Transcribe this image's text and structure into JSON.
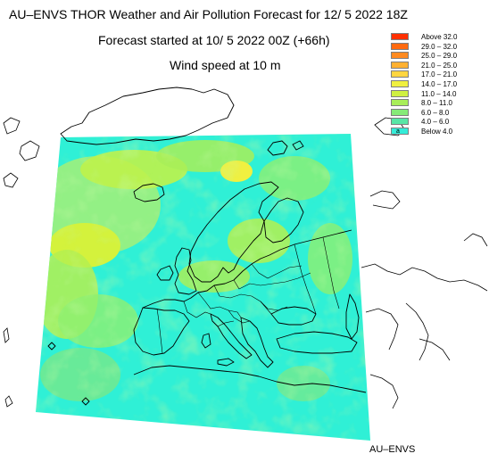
{
  "header": {
    "title": "AU–ENVS THOR Weather and Air Pollution Forecast for 12/ 5 2022  18Z",
    "subtitle": "Forecast started at 10/ 5 2022  00Z (+66h)",
    "variable": "Wind speed at 10 m"
  },
  "legend": {
    "items": [
      {
        "label": "Above   32.0",
        "color": "#ff3000"
      },
      {
        "label": "29.0  –  32.0",
        "color": "#ff6a10"
      },
      {
        "label": "25.0  –  29.0",
        "color": "#ff8a20"
      },
      {
        "label": "21.0  –  25.0",
        "color": "#ffb030"
      },
      {
        "label": "17.0  –  21.0",
        "color": "#ffd640"
      },
      {
        "label": "14.0  –  17.0",
        "color": "#f0f040"
      },
      {
        "label": "11.0  –  14.0",
        "color": "#cff040"
      },
      {
        "label": "8.0  –  11.0",
        "color": "#a8ee58"
      },
      {
        "label": "6.0  –   8.0",
        "color": "#86ea78"
      },
      {
        "label": "4.0  –   6.0",
        "color": "#58e6a6"
      },
      {
        "label": "Below    4.0",
        "color": "#34ecd8",
        "marker": "a"
      }
    ]
  },
  "map": {
    "region": "Europe",
    "land_outline_color": "#000000",
    "base_color": "#2ff0d6"
  },
  "footer": {
    "credit": "AU–ENVS"
  }
}
